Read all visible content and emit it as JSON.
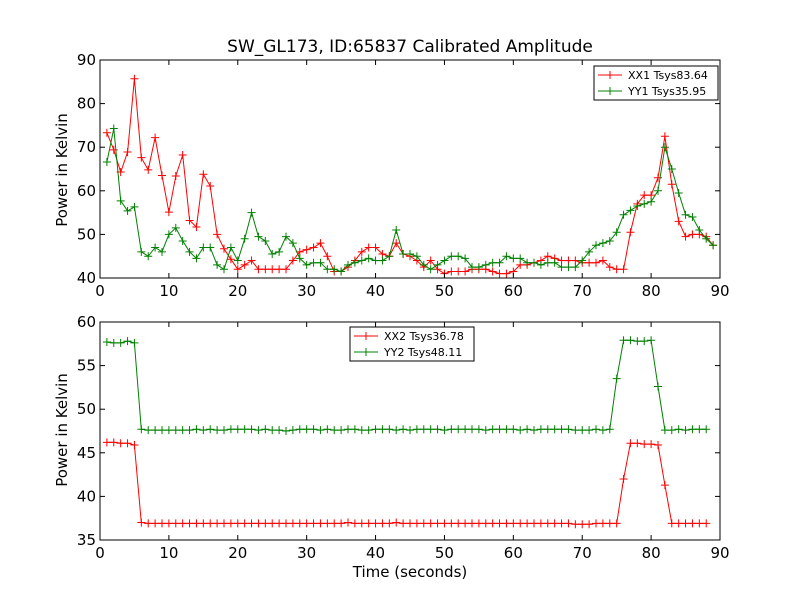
{
  "chart_data": [
    {
      "type": "line",
      "title": "SW_GL173, ID:65837 Calibrated Amplitude",
      "xlabel": "",
      "ylabel": "Power in Kelvin",
      "xlim": [
        0,
        90
      ],
      "ylim": [
        40,
        90
      ],
      "xticks": [
        "0",
        "10",
        "20",
        "30",
        "40",
        "50",
        "60",
        "70",
        "80",
        "90"
      ],
      "yticks": [
        "40",
        "50",
        "60",
        "70",
        "80",
        "90"
      ],
      "legend_position": "top-right",
      "series": [
        {
          "name": "XX1 Tsys83.64",
          "color": "#ff0000",
          "values": [
            73.3,
            69.4,
            64.3,
            68.9,
            85.7,
            67.6,
            64.8,
            72.2,
            63.5,
            55.1,
            63.4,
            68.2,
            53.2,
            51.7,
            63.8,
            61.1,
            50.0,
            46.7,
            44.3,
            42.0,
            43.0,
            44.0,
            42.0,
            42.0,
            42.0,
            42.0,
            42.0,
            44.0,
            46.0,
            46.5,
            47.0,
            48.0,
            45.0,
            41.5,
            41.5,
            42.5,
            44.0,
            46.0,
            47.0,
            47.0,
            45.5,
            45.0,
            48.0,
            45.5,
            45.0,
            44.0,
            42.5,
            44.0,
            42.0,
            41.0,
            41.5,
            41.5,
            41.5,
            42.0,
            42.0,
            42.0,
            41.5,
            41.0,
            41.0,
            41.5,
            43.0,
            43.0,
            43.5,
            44.0,
            45.0,
            44.5,
            44.0,
            44.0,
            44.0,
            43.5,
            43.5,
            43.5,
            44.0,
            42.5,
            42.0,
            42.0,
            50.5,
            57.0,
            59.0,
            59.0,
            63.0,
            72.5,
            61.5,
            53.0,
            49.5,
            50.0,
            50.0,
            49.5,
            47.5
          ]
        },
        {
          "name": "YY1 Tsys35.95",
          "color": "#008000",
          "values": [
            66.6,
            74.3,
            57.7,
            55.4,
            56.3,
            46.0,
            45.0,
            47.0,
            46.0,
            50.0,
            51.5,
            48.5,
            46.0,
            44.5,
            47.0,
            47.0,
            43.0,
            42.0,
            47.0,
            44.0,
            49.0,
            55.0,
            49.5,
            48.5,
            45.5,
            46.0,
            49.5,
            48.0,
            44.5,
            43.0,
            43.5,
            43.5,
            42.0,
            42.0,
            41.5,
            43.0,
            43.5,
            44.0,
            44.5,
            44.0,
            44.0,
            45.0,
            51.0,
            45.5,
            45.5,
            45.0,
            43.0,
            42.0,
            43.0,
            44.0,
            45.0,
            45.0,
            44.5,
            42.5,
            42.5,
            43.0,
            43.5,
            43.5,
            45.0,
            44.5,
            44.5,
            43.5,
            43.5,
            43.0,
            43.5,
            43.5,
            42.5,
            42.5,
            42.5,
            44.0,
            46.0,
            47.5,
            48.0,
            48.5,
            50.5,
            54.5,
            55.5,
            56.5,
            57.0,
            57.5,
            60.0,
            70.0,
            65.0,
            59.5,
            54.5,
            54.0,
            51.0,
            49.0,
            47.5
          ]
        }
      ]
    },
    {
      "type": "line",
      "title": "",
      "xlabel": "Time (seconds)",
      "ylabel": "Power in Kelvin",
      "xlim": [
        0,
        90
      ],
      "ylim": [
        35,
        60
      ],
      "xticks": [
        "0",
        "10",
        "20",
        "30",
        "40",
        "50",
        "60",
        "70",
        "80",
        "90"
      ],
      "yticks": [
        "35",
        "40",
        "45",
        "50",
        "55",
        "60"
      ],
      "legend_position": "top-center",
      "series": [
        {
          "name": "XX2 Tsys36.78",
          "color": "#ff0000",
          "values": [
            46.2,
            46.2,
            46.1,
            46.1,
            45.9,
            37.0,
            36.9,
            36.9,
            36.9,
            36.9,
            36.9,
            36.9,
            36.9,
            36.9,
            36.9,
            36.9,
            36.9,
            36.9,
            36.9,
            36.9,
            36.9,
            36.9,
            36.9,
            36.9,
            36.9,
            36.9,
            36.9,
            36.9,
            36.9,
            36.9,
            36.9,
            36.9,
            36.9,
            36.9,
            36.9,
            37.0,
            36.9,
            36.9,
            36.9,
            36.9,
            36.9,
            36.9,
            37.0,
            36.9,
            36.9,
            36.9,
            36.9,
            36.9,
            36.9,
            36.9,
            36.9,
            36.9,
            36.9,
            36.9,
            36.9,
            36.9,
            36.9,
            36.9,
            36.9,
            36.9,
            36.9,
            36.9,
            36.9,
            36.9,
            36.9,
            36.9,
            36.9,
            36.9,
            36.8,
            36.8,
            36.8,
            36.9,
            36.9,
            36.9,
            36.9,
            42.0,
            46.1,
            46.1,
            46.0,
            46.0,
            45.9,
            41.3,
            36.9,
            36.9,
            36.9,
            36.9,
            36.9,
            36.9
          ]
        },
        {
          "name": "YY2 Tsys48.11",
          "color": "#008000",
          "values": [
            57.7,
            57.6,
            57.6,
            57.8,
            57.6,
            47.7,
            47.6,
            47.6,
            47.6,
            47.6,
            47.6,
            47.6,
            47.6,
            47.7,
            47.6,
            47.7,
            47.6,
            47.6,
            47.7,
            47.7,
            47.7,
            47.7,
            47.6,
            47.7,
            47.6,
            47.6,
            47.5,
            47.6,
            47.7,
            47.7,
            47.7,
            47.6,
            47.7,
            47.6,
            47.6,
            47.7,
            47.7,
            47.6,
            47.6,
            47.7,
            47.7,
            47.7,
            47.6,
            47.7,
            47.6,
            47.7,
            47.7,
            47.7,
            47.7,
            47.6,
            47.7,
            47.7,
            47.7,
            47.7,
            47.7,
            47.6,
            47.7,
            47.7,
            47.7,
            47.7,
            47.6,
            47.7,
            47.6,
            47.7,
            47.7,
            47.7,
            47.7,
            47.7,
            47.6,
            47.6,
            47.6,
            47.7,
            47.6,
            47.7,
            53.5,
            57.9,
            57.9,
            57.8,
            57.8,
            57.9,
            52.6,
            47.6,
            47.6,
            47.7,
            47.6,
            47.7,
            47.7,
            47.7
          ]
        }
      ]
    }
  ]
}
